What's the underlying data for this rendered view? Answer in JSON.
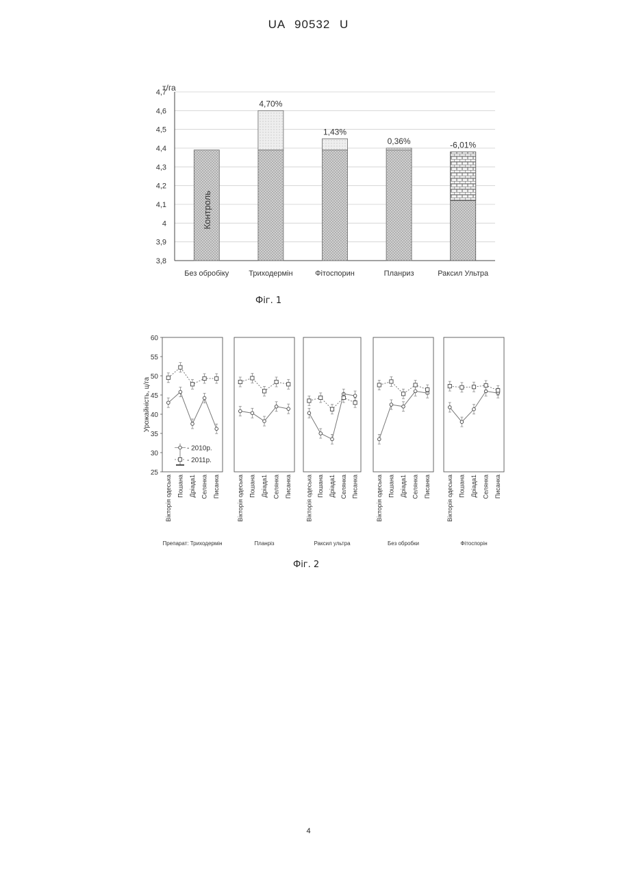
{
  "header": {
    "text": "UA 90532 U"
  },
  "page_number": "4",
  "figures": {
    "fig1": {
      "caption": "Фіг. 1"
    },
    "fig2": {
      "caption": "Фіг. 2"
    }
  },
  "chart_data": [
    {
      "type": "bar",
      "ylabel": "т/га",
      "ylim": [
        3.8,
        4.7
      ],
      "yticks": [
        "4,7",
        "4,6",
        "4,5",
        "4,4",
        "4,3",
        "4,2",
        "4,1",
        "4",
        "3,9",
        "3,8"
      ],
      "ytick_values": [
        4.7,
        4.6,
        4.5,
        4.4,
        4.3,
        4.2,
        4.1,
        4.0,
        3.9,
        3.8
      ],
      "categories": [
        "Без обробіку",
        "Триходермін",
        "Фітоспорин",
        "Планриз",
        "Раксил Ультра"
      ],
      "values": [
        4.39,
        4.6,
        4.45,
        4.4,
        4.38
      ],
      "control_value": 4.39,
      "bar_labels": [
        "",
        "4,70%",
        "1,43%",
        "0,36%",
        "-6,01%"
      ],
      "inner_label": "Контроль",
      "grid": true
    },
    {
      "type": "line",
      "ylabel": "Урожайність, ц/га",
      "ylim": [
        25,
        60
      ],
      "yticks": [
        "60",
        "55",
        "50",
        "45",
        "40",
        "35",
        "30",
        "25"
      ],
      "ytick_values": [
        60,
        55,
        50,
        45,
        40,
        35,
        30,
        25
      ],
      "categories": [
        "Вікторія одеська",
        "Пошана",
        "Дріада1",
        "Селянка",
        "Писанка"
      ],
      "legend": [
        "- 2010р.",
        "- 2011р."
      ],
      "panels": [
        {
          "title": "Препарат: Триходермін",
          "series": [
            {
              "values": [
                43.0,
                45.8,
                37.5,
                44.2,
                36.2
              ]
            },
            {
              "values": [
                49.5,
                52.2,
                47.8,
                49.3,
                49.3
              ]
            }
          ]
        },
        {
          "title": "Планріз",
          "series": [
            {
              "values": [
                40.8,
                40.3,
                38.2,
                42.0,
                41.4
              ]
            },
            {
              "values": [
                48.4,
                49.4,
                46.0,
                48.4,
                47.8
              ]
            }
          ]
        },
        {
          "title": "Раксил ультра",
          "series": [
            {
              "values": [
                40.3,
                35.0,
                33.5,
                45.3,
                44.8
              ]
            },
            {
              "values": [
                43.5,
                44.3,
                41.3,
                44.3,
                43.0
              ]
            }
          ]
        },
        {
          "title": "Без обробки",
          "series": [
            {
              "values": [
                33.5,
                42.5,
                42.0,
                46.0,
                45.5
              ]
            },
            {
              "values": [
                47.6,
                48.5,
                45.3,
                47.6,
                46.4
              ]
            }
          ]
        },
        {
          "title": "Фітоспорін",
          "series": [
            {
              "values": [
                41.8,
                38.0,
                41.3,
                46.0,
                45.5
              ]
            },
            {
              "values": [
                47.3,
                47.0,
                47.1,
                47.5,
                46.2
              ]
            }
          ]
        }
      ]
    }
  ]
}
